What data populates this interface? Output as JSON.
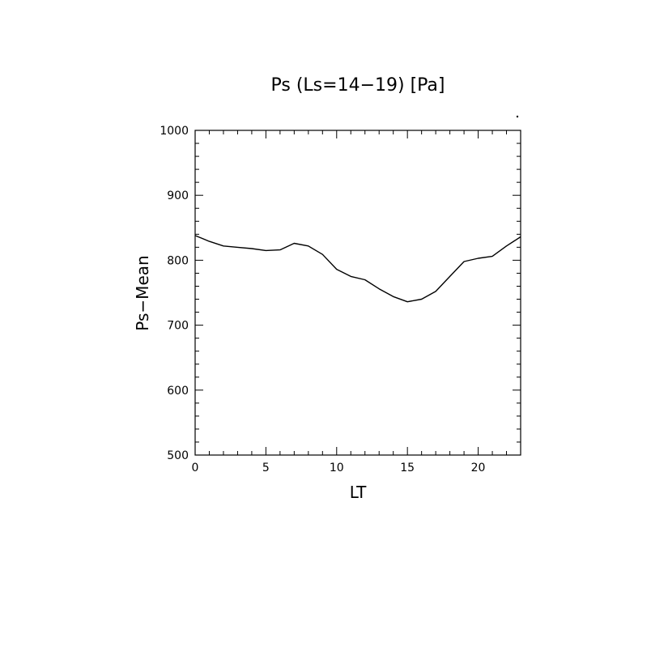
{
  "chart_data": {
    "type": "line",
    "title": "Ps (Ls=14−19) [Pa]",
    "xlabel": "LT",
    "ylabel": "Ps−Mean",
    "xlim": [
      0,
      23
    ],
    "ylim": [
      500,
      1000
    ],
    "x_ticks": [
      0,
      5,
      10,
      15,
      20
    ],
    "y_ticks": [
      500,
      600,
      700,
      800,
      900,
      1000
    ],
    "grid": false,
    "legend": "none",
    "series": [
      {
        "x": [
          0,
          1,
          2,
          3,
          4,
          5,
          6,
          7,
          8,
          9,
          10,
          11,
          12,
          13,
          14,
          15,
          16,
          17,
          18,
          19,
          20,
          21,
          22,
          23
        ],
        "values": [
          838,
          829,
          822,
          820,
          818,
          815,
          816,
          826,
          822,
          809,
          786,
          775,
          770,
          756,
          744,
          736,
          740,
          752,
          775,
          798,
          803,
          806,
          822,
          836
        ]
      }
    ]
  }
}
